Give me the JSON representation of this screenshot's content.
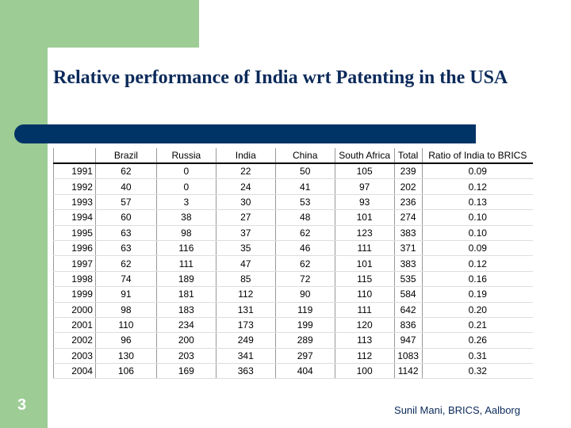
{
  "slide": {
    "title": "Relative performance of India wrt Patenting in the USA",
    "slide_number": "3",
    "footer": "Sunil Mani, BRICS, Aalborg",
    "table": {
      "columns": [
        "Brazil",
        "Russia",
        "India",
        "China",
        "South Africa",
        "Total",
        "Ratio of India to BRICS"
      ],
      "rows": [
        [
          "1991",
          "62",
          "0",
          "22",
          "50",
          "105",
          "239",
          "0.09"
        ],
        [
          "1992",
          "40",
          "0",
          "24",
          "41",
          "97",
          "202",
          "0.12"
        ],
        [
          "1993",
          "57",
          "3",
          "30",
          "53",
          "93",
          "236",
          "0.13"
        ],
        [
          "1994",
          "60",
          "38",
          "27",
          "48",
          "101",
          "274",
          "0.10"
        ],
        [
          "1995",
          "63",
          "98",
          "37",
          "62",
          "123",
          "383",
          "0.10"
        ],
        [
          "1996",
          "63",
          "116",
          "35",
          "46",
          "111",
          "371",
          "0.09"
        ],
        [
          "1997",
          "62",
          "111",
          "47",
          "62",
          "101",
          "383",
          "0.12"
        ],
        [
          "1998",
          "74",
          "189",
          "85",
          "72",
          "115",
          "535",
          "0.16"
        ],
        [
          "1999",
          "91",
          "181",
          "112",
          "90",
          "110",
          "584",
          "0.19"
        ],
        [
          "2000",
          "98",
          "183",
          "131",
          "119",
          "111",
          "642",
          "0.20"
        ],
        [
          "2001",
          "110",
          "234",
          "173",
          "199",
          "120",
          "836",
          "0.21"
        ],
        [
          "2002",
          "96",
          "200",
          "249",
          "289",
          "113",
          "947",
          "0.26"
        ],
        [
          "2003",
          "130",
          "203",
          "341",
          "297",
          "112",
          "1083",
          "0.31"
        ],
        [
          "2004",
          "106",
          "169",
          "363",
          "404",
          "100",
          "1142",
          "0.32"
        ]
      ]
    }
  }
}
